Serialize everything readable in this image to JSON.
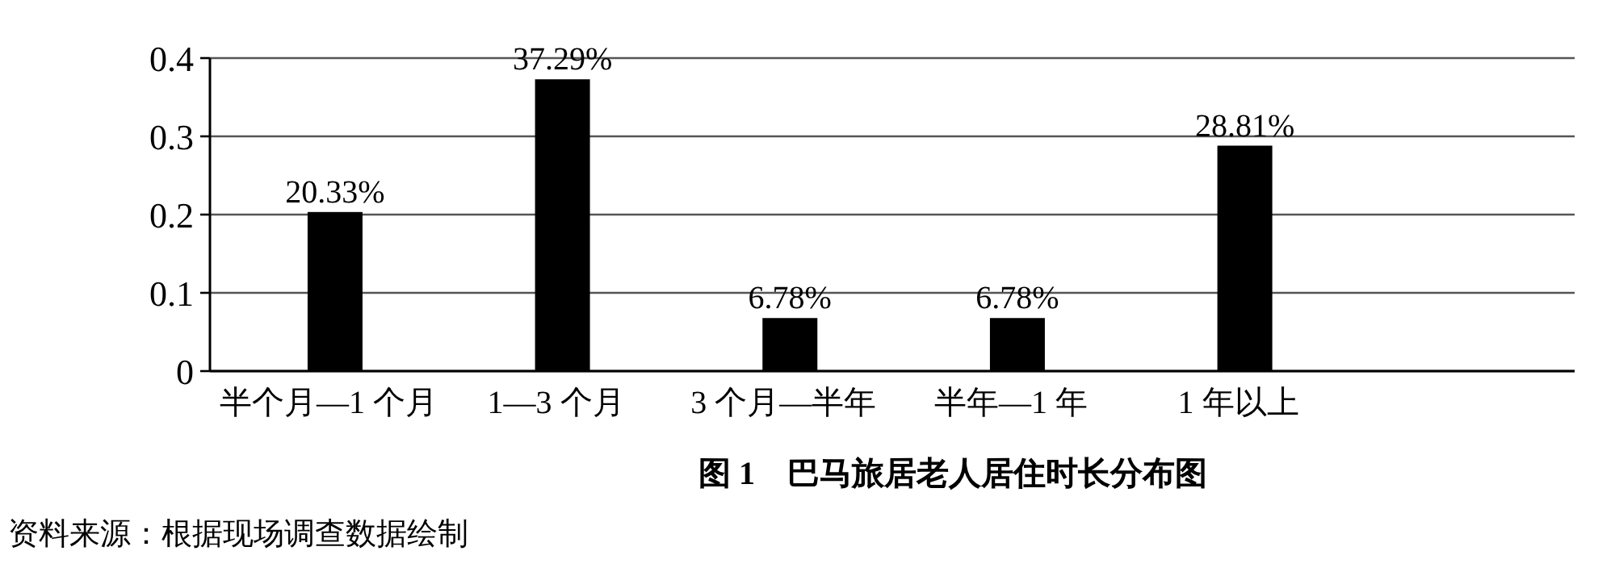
{
  "chart_data": {
    "type": "bar",
    "title": "图 1　巴马旅居老人居住时长分布图",
    "categories": [
      "半个月—1 个月",
      "1—3 个月",
      "3 个月—半年",
      "半年—1 年",
      "1 年以上"
    ],
    "values": [
      0.2033,
      0.3729,
      0.0678,
      0.0678,
      0.2881
    ],
    "value_labels": [
      "20.33%",
      "37.29%",
      "6.78%",
      "6.78%",
      "28.81%"
    ],
    "color": "#000000",
    "ylim": [
      0,
      0.4
    ],
    "yticks": [
      {
        "value": 0,
        "label": "0"
      },
      0.1,
      0.2,
      0.3,
      0.4
    ],
    "grid": "y",
    "annotations": [
      "资料来源：根据现场调查数据绘制"
    ]
  }
}
